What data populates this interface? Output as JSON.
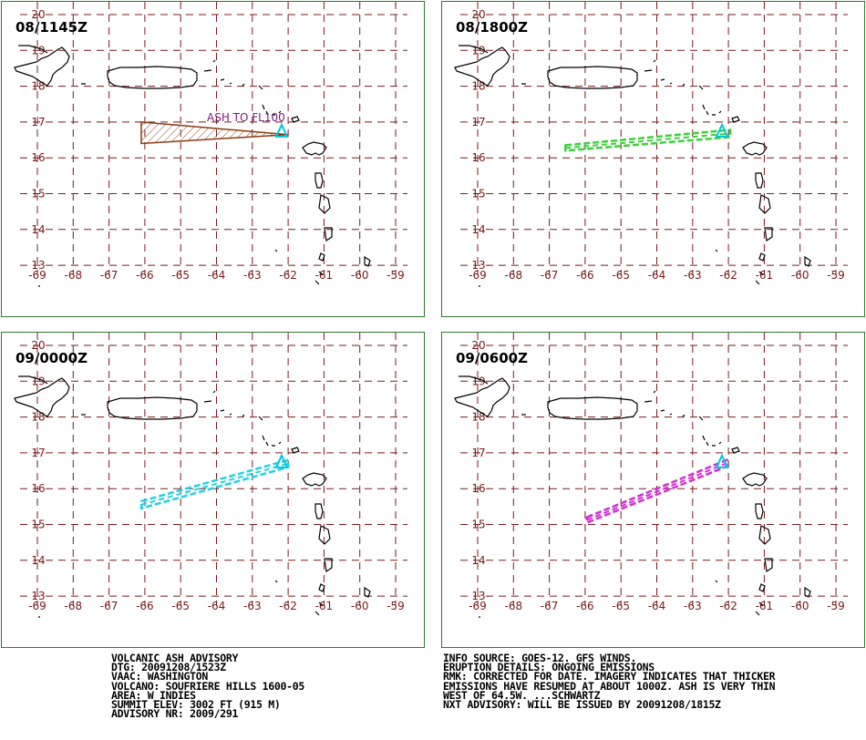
{
  "map": {
    "lon_ticks": [
      "-69",
      "-68",
      "-67",
      "-66",
      "-65",
      "-64",
      "-63",
      "-62",
      "-61",
      "-60",
      "-59"
    ],
    "lat_ticks": [
      "20",
      "19",
      "18",
      "17",
      "16",
      "15",
      "14",
      "13"
    ],
    "volcano_lon": -62.18,
    "volcano_lat": 16.72,
    "colors": {
      "grid": "#7a1a1a",
      "frame": "#2f7a2f",
      "coast": "#000000",
      "volcano": "#00c8e0"
    }
  },
  "panels": [
    {
      "time": "08/1145Z",
      "color": "#8b3a10",
      "style": "hatched",
      "label": "ASH TO FL100",
      "polygon": [
        [
          -66.1,
          17.0
        ],
        [
          -62.0,
          16.65
        ],
        [
          -66.1,
          16.4
        ]
      ]
    },
    {
      "time": "08/1800Z",
      "color": "#3cd23c",
      "style": "dashed-band",
      "label": "",
      "polygon": [
        [
          -66.55,
          16.35
        ],
        [
          -61.95,
          16.78
        ],
        [
          -61.95,
          16.58
        ],
        [
          -66.55,
          16.2
        ]
      ]
    },
    {
      "time": "09/0000Z",
      "color": "#22d0e6",
      "style": "dashed-band",
      "label": "",
      "polygon": [
        [
          -66.1,
          15.65
        ],
        [
          -62.0,
          16.8
        ],
        [
          -62.0,
          16.6
        ],
        [
          -66.1,
          15.45
        ]
      ]
    },
    {
      "time": "09/0600Z",
      "color": "#d22ed2",
      "style": "dashed-band",
      "label": "",
      "polygon": [
        [
          -65.95,
          15.2
        ],
        [
          -62.05,
          16.8
        ],
        [
          -62.05,
          16.62
        ],
        [
          -65.95,
          15.05
        ]
      ]
    }
  ],
  "advisory_left": [
    "VOLCANIC ASH ADVISORY",
    "DTG: 20091208/1523Z",
    "VAAC: WASHINGTON",
    "VOLCANO: SOUFRIERE HILLS 1600-05",
    "AREA: W_INDIES",
    "SUMMIT ELEV: 3002 FT (915 M)",
    "ADVISORY NR: 2009/291"
  ],
  "advisory_right": [
    "INFO SOURCE: GOES-12. GFS WINDS.",
    "ERUPTION DETAILS: ONGOING EMISSIONS",
    "RMK: CORRECTED FOR DATE. IMAGERY INDICATES THAT THICKER",
    "EMISSIONS HAVE RESUMED AT ABOUT 1000Z. ASH IS VERY THIN",
    "WEST OF 64.5W. ...SCHWARTZ",
    "NXT ADVISORY: WILL BE ISSUED BY 20091208/1815Z"
  ]
}
